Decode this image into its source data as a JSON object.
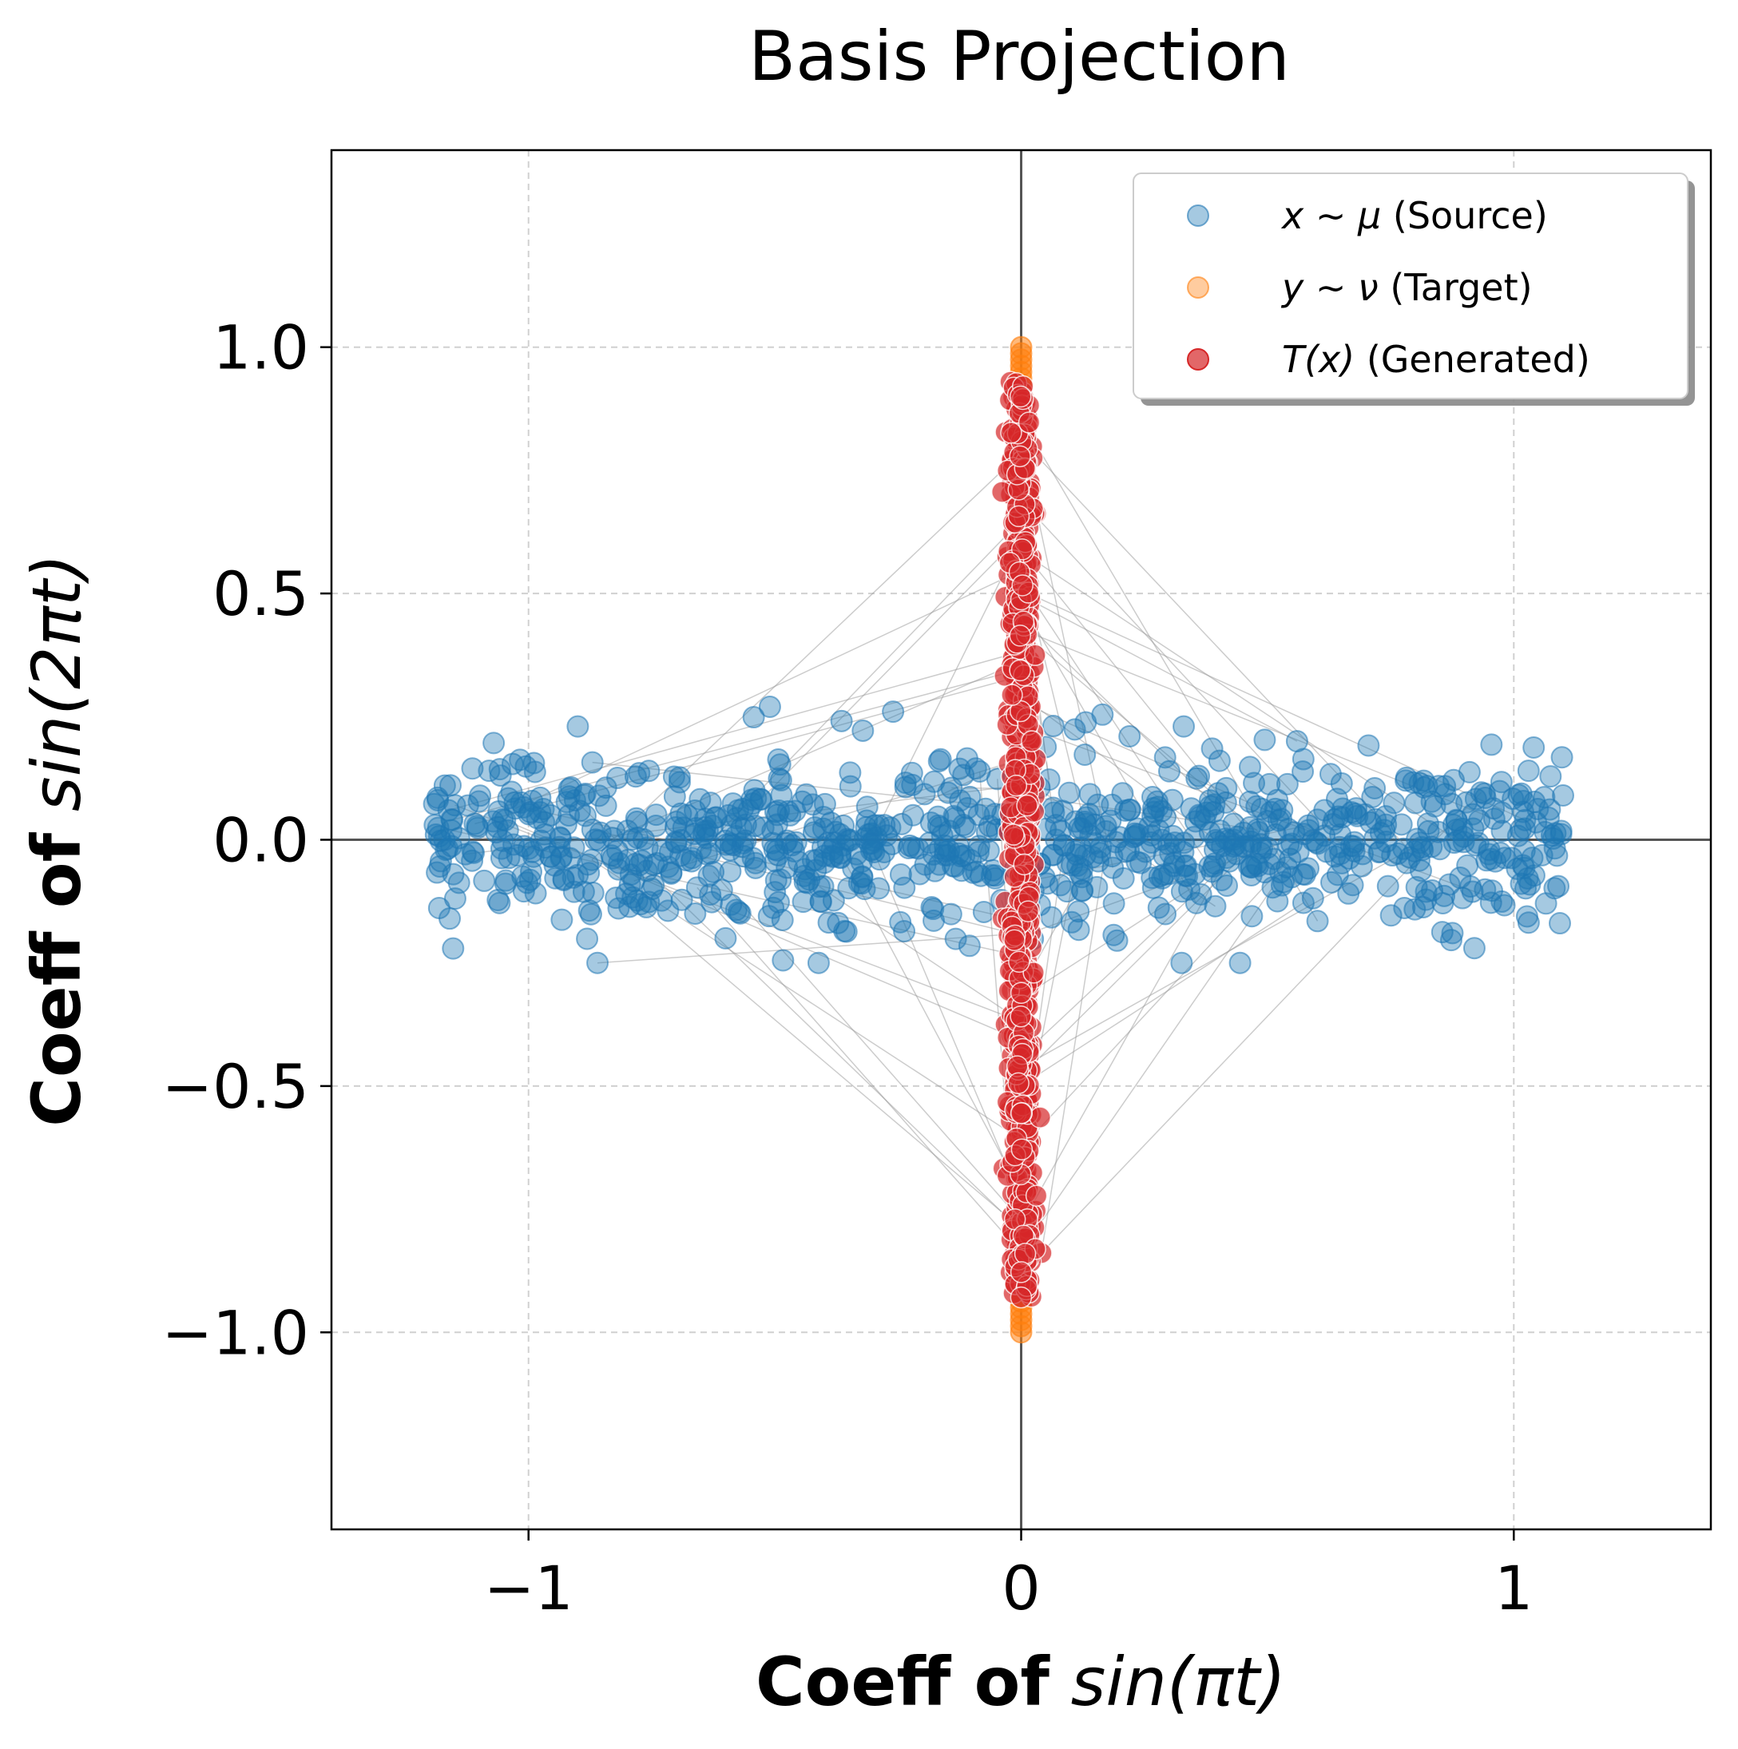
{
  "chart_data": {
    "type": "scatter",
    "title": "Basis Projection",
    "xlabel": {
      "bold": "Coeff of",
      "math": "sin(πt)"
    },
    "ylabel": {
      "bold": "Coeff of",
      "math": "sin(2πt)"
    },
    "xlim": [
      -1.4,
      1.4
    ],
    "ylim": [
      -1.4,
      1.4
    ],
    "xticks": [
      -1,
      0,
      1
    ],
    "xtick_labels": [
      "−1",
      "0",
      "1"
    ],
    "yticks": [
      1.0,
      0.5,
      0.0,
      -0.5,
      -1.0
    ],
    "ytick_labels": [
      "1.0",
      "0.5",
      "0.0",
      "−0.5",
      "−1.0"
    ],
    "grid": true,
    "legend_position": "top-right",
    "legend": [
      {
        "math": "x ∼ μ",
        "text": " (Source)"
      },
      {
        "math": "y ∼ ν",
        "text": " (Target)"
      },
      {
        "math": "T(x)",
        "text": " (Generated)"
      }
    ],
    "series": [
      {
        "name": "x ~ μ (Source)",
        "color": "#1f77b4",
        "alpha": 0.4,
        "distribution": {
          "x_range": [
            -1.2,
            1.1
          ],
          "y_mean": 0.0,
          "y_sd": 0.08,
          "n": 900
        },
        "sample_points": [
          [
            -1.17,
            0.11
          ],
          [
            -1.16,
            -0.16
          ],
          [
            -1.08,
            0.14
          ],
          [
            -0.9,
            0.23
          ],
          [
            -0.86,
            -0.25
          ],
          [
            -0.6,
            -0.2
          ],
          [
            -0.51,
            0.27
          ],
          [
            -0.26,
            0.26
          ],
          [
            0.22,
            0.21
          ],
          [
            0.33,
            0.23
          ],
          [
            0.56,
            0.2
          ],
          [
            0.92,
            -0.22
          ],
          [
            1.03,
            0.14
          ],
          [
            1.1,
            0.09
          ]
        ]
      },
      {
        "name": "y ~ ν (Target)",
        "color": "#ff7f0e",
        "alpha": 0.4,
        "distribution": {
          "x_value": 0.0,
          "y_range": [
            -1.0,
            1.0
          ],
          "n": 900
        }
      },
      {
        "name": "T(x) (Generated)",
        "color": "#d62728",
        "alpha": 0.7,
        "distribution": {
          "x_mean": 0.0,
          "x_sd": 0.012,
          "y_range": [
            -0.93,
            0.93
          ],
          "n": 900
        }
      }
    ],
    "transport_lines": {
      "color": "#999999",
      "description": "source points connected to generated points"
    }
  }
}
